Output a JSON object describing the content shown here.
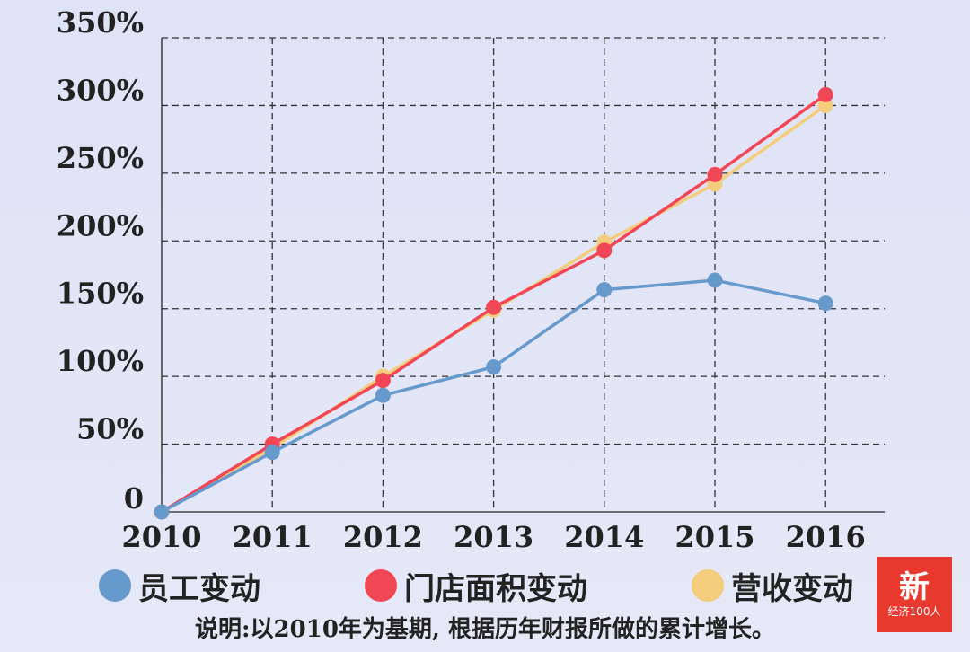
{
  "chart_data": {
    "type": "line",
    "categories": [
      "2010",
      "2011",
      "2012",
      "2013",
      "2014",
      "2015",
      "2016"
    ],
    "y_tick_labels": [
      "0",
      "50%",
      "100%",
      "150%",
      "200%",
      "250%",
      "300%",
      "350%"
    ],
    "ylim": [
      0,
      350
    ],
    "grid": true,
    "legend_position": "bottom",
    "series": [
      {
        "name": "营收变动",
        "color": "#f3cd7b",
        "values": [
          0,
          47,
          100,
          149,
          199,
          242,
          300
        ]
      },
      {
        "name": "门店面积变动",
        "color": "#f14655",
        "values": [
          0,
          50,
          97,
          151,
          193,
          249,
          308
        ]
      },
      {
        "name": "员工变动",
        "color": "#6699cc",
        "values": [
          0,
          44,
          86,
          107,
          164,
          171,
          154
        ]
      }
    ]
  },
  "legend": [
    {
      "label": "员工变动",
      "color": "#6699cc"
    },
    {
      "label": "门店面积变动",
      "color": "#f14655"
    },
    {
      "label": "营收变动",
      "color": "#f3cd7b"
    }
  ],
  "note": "说明:以2010年为基期, 根据历年财报所做的累计增长。",
  "logo": {
    "main": "新",
    "sub": "经济100人"
  }
}
